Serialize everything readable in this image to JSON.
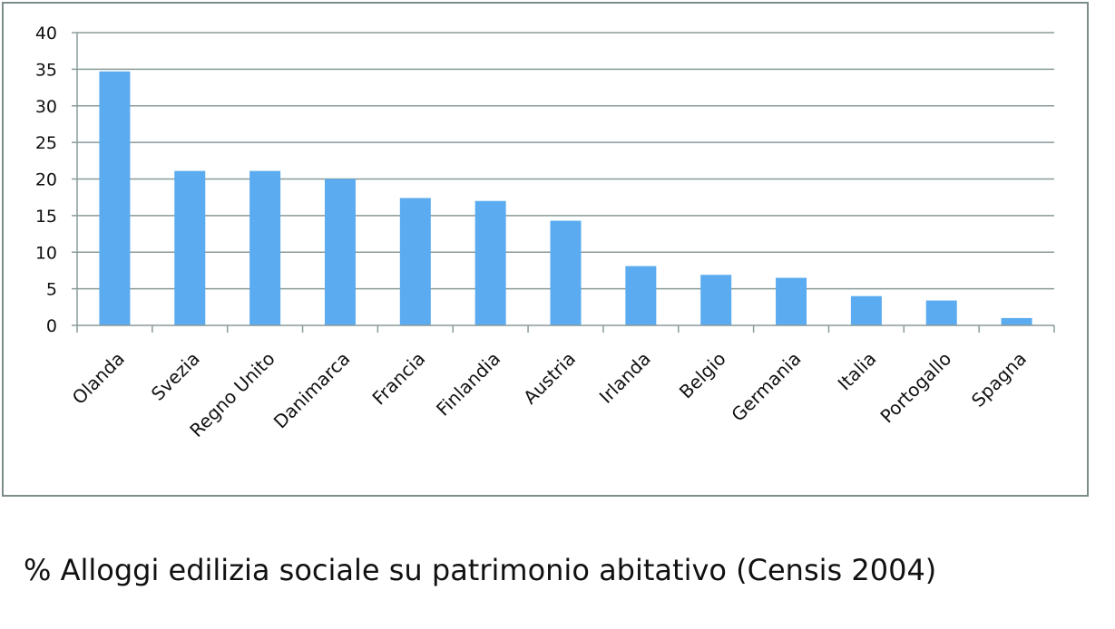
{
  "caption": "% Alloggi edilizia sociale su patrimonio abitativo (Censis 2004)",
  "colors": {
    "bar": "#5aabf0",
    "gridline": "#8a9a9a",
    "frame": "#7f8c8c",
    "text": "#111111"
  },
  "chart_data": {
    "type": "bar",
    "categories": [
      "Olanda",
      "Svezia",
      "Regno Unito",
      "Danimarca",
      "Francia",
      "Finlandia",
      "Austria",
      "Irlanda",
      "Belgio",
      "Germania",
      "Italia",
      "Portogallo",
      "Spagna"
    ],
    "values": [
      34.7,
      21.1,
      21.1,
      20.0,
      17.4,
      17.0,
      14.3,
      8.1,
      6.9,
      6.5,
      4.0,
      3.4,
      1.0
    ],
    "yticks": [
      "0",
      "5",
      "10",
      "15",
      "20",
      "25",
      "30",
      "35",
      "40"
    ],
    "ylim": [
      0,
      40
    ],
    "grid": true,
    "legend": "none"
  }
}
